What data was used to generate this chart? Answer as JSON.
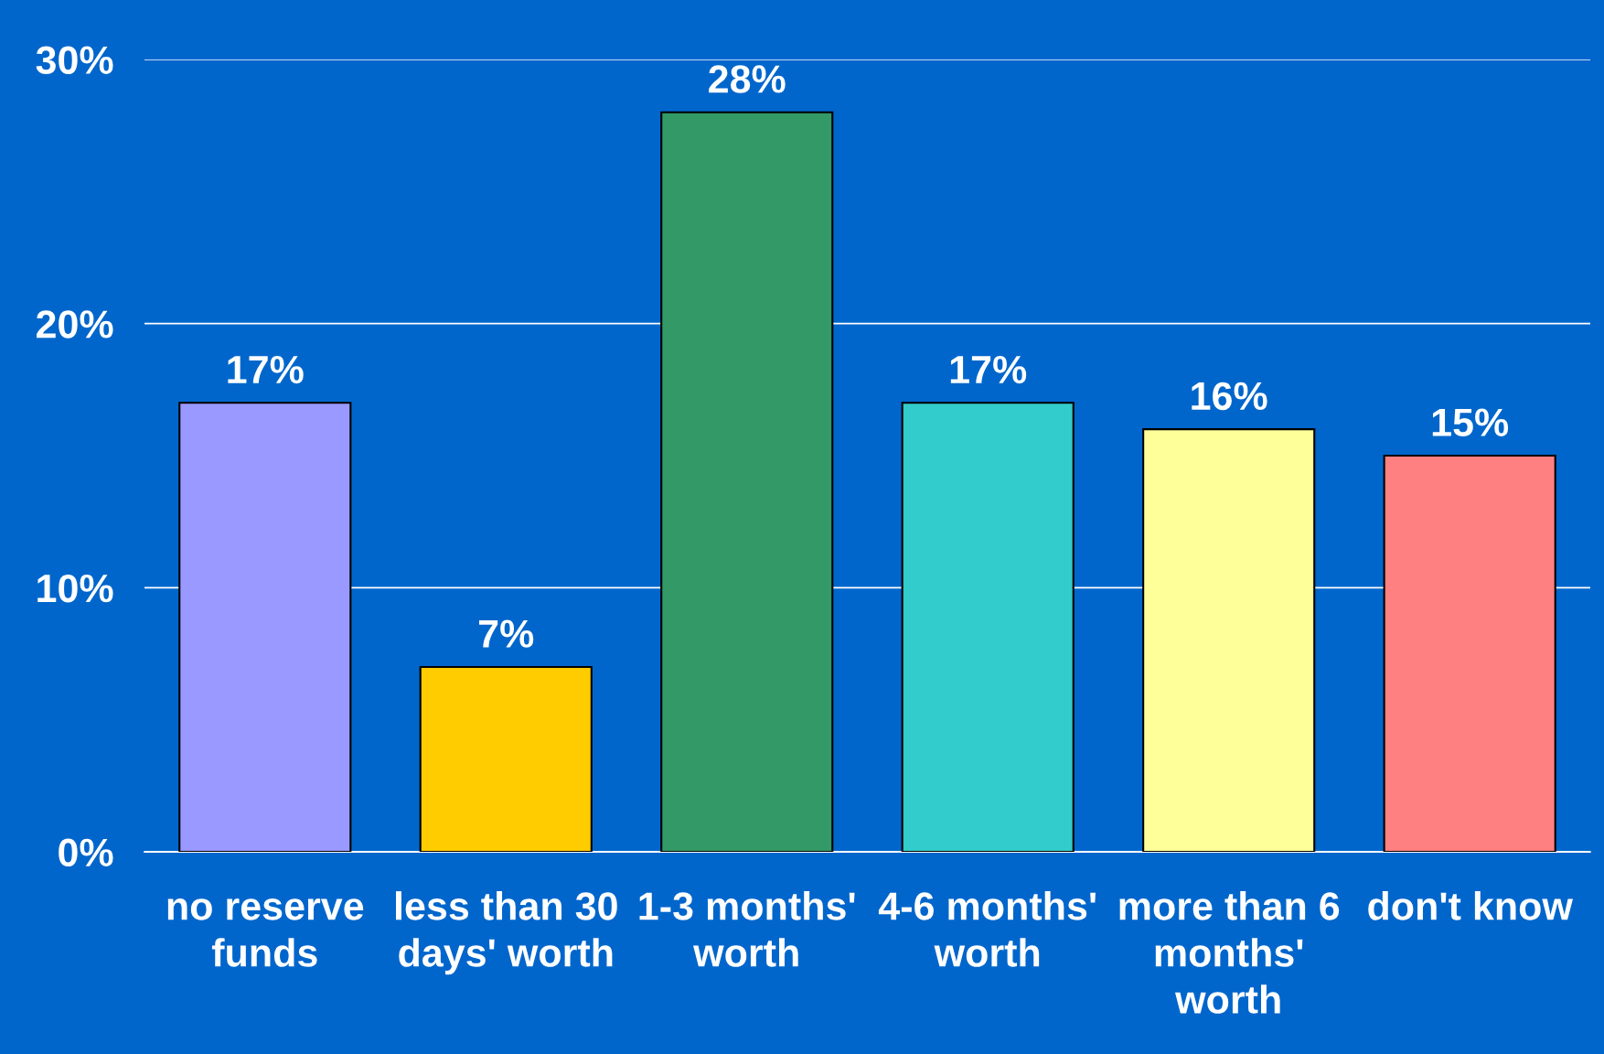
{
  "chart_data": {
    "type": "bar",
    "categories": [
      "no reserve funds",
      "less than 30 days' worth",
      "1-3 months' worth",
      "4-6 months' worth",
      "more than 6 months' worth",
      "don't know"
    ],
    "values": [
      17,
      7,
      28,
      17,
      16,
      15
    ],
    "colors": [
      "#9999ff",
      "#ffcc00",
      "#339966",
      "#33cccc",
      "#ffff99",
      "#ff8080"
    ],
    "value_labels": [
      "17%",
      "7%",
      "28%",
      "17%",
      "16%",
      "15%"
    ],
    "ylim": [
      0,
      30
    ],
    "yticks": [
      {
        "value": 0,
        "label": "0%"
      },
      {
        "value": 10,
        "label": "10%"
      },
      {
        "value": 20,
        "label": "20%"
      },
      {
        "value": 30,
        "label": "30%"
      }
    ],
    "grid": "y"
  }
}
